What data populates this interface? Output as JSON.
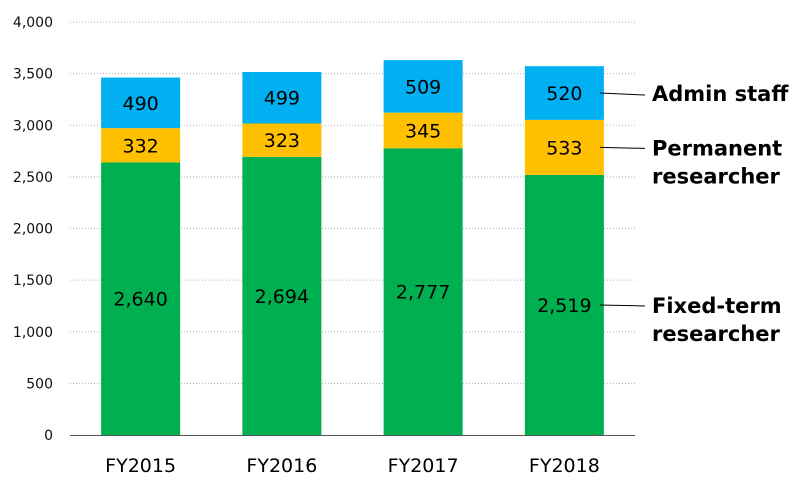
{
  "chart_data": {
    "type": "bar",
    "stacked": true,
    "categories": [
      "FY2015",
      "FY2016",
      "FY2017",
      "FY2018"
    ],
    "series": [
      {
        "name": "Fixed-term researcher",
        "color": "#00b050",
        "values": [
          2640,
          2694,
          2777,
          2519
        ],
        "labels": [
          "2,640",
          "2,694",
          "2,777",
          "2,519"
        ]
      },
      {
        "name": "Permanent researcher",
        "color": "#ffc000",
        "values": [
          332,
          323,
          345,
          533
        ],
        "labels": [
          "332",
          "323",
          "345",
          "533"
        ]
      },
      {
        "name": "Admin staff",
        "color": "#00b0f0",
        "values": [
          490,
          499,
          509,
          520
        ],
        "labels": [
          "490",
          "499",
          "509",
          "520"
        ]
      }
    ],
    "legend": [
      {
        "lines": [
          "Admin staff"
        ]
      },
      {
        "lines": [
          "Permanent",
          "researcher"
        ]
      },
      {
        "lines": [
          "Fixed-term",
          "researcher"
        ]
      }
    ],
    "yticks": [
      "0",
      "500",
      "1,000",
      "1,500",
      "2,000",
      "2,500",
      "3,000",
      "3,500",
      "4,000"
    ],
    "ylim": [
      0,
      4000
    ],
    "grid": true,
    "legend_placement": "right"
  }
}
